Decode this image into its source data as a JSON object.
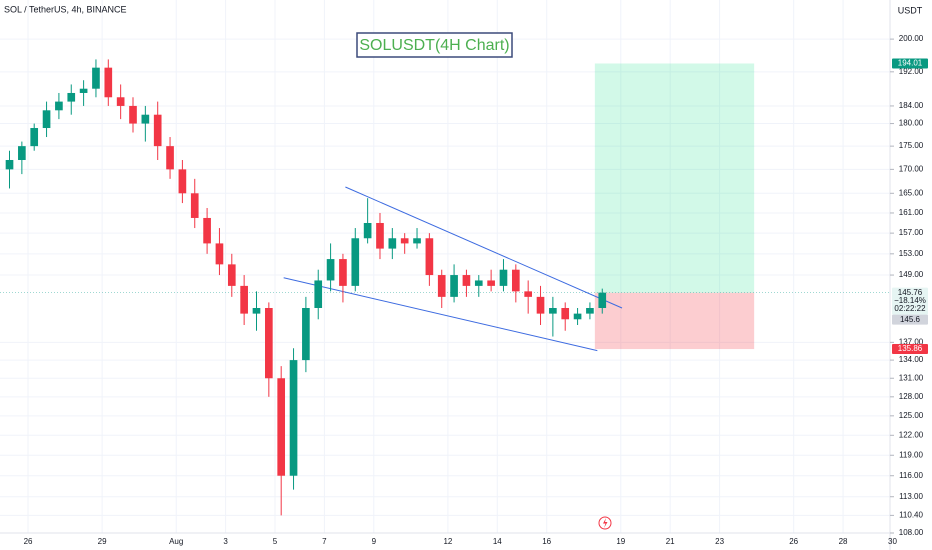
{
  "chart_data": {
    "type": "candlestick",
    "symbol_label": "SOL / TetherUS, 4h, BINANCE",
    "title": "SOLUSDT(4H Chart)",
    "currency": "USDT",
    "log_scale": true,
    "up_color": "#089981",
    "down_color": "#f23645",
    "trendline_color": "#3d6be0",
    "categories": [
      null,
      null,
      null,
      null,
      null,
      null,
      null,
      null,
      null,
      null,
      null,
      null,
      null,
      null,
      null,
      null,
      null,
      null,
      null,
      null,
      null,
      null,
      null,
      null,
      null,
      null,
      null,
      null,
      null,
      null,
      null,
      null,
      null,
      null,
      null,
      null,
      null,
      null,
      null,
      null,
      null,
      null,
      null,
      null,
      null,
      null,
      null,
      null,
      null
    ],
    "open": [
      170,
      172,
      175,
      179,
      183,
      185,
      187,
      188,
      193,
      186,
      184,
      180,
      182,
      175,
      170,
      165,
      160,
      155,
      151,
      147,
      142,
      143,
      131,
      116,
      134,
      143,
      148,
      152,
      147,
      156,
      159,
      154,
      156,
      155,
      156,
      149,
      145,
      149,
      147,
      148,
      147,
      150,
      146,
      145,
      142,
      143,
      141,
      142,
      143
    ],
    "high": [
      174,
      176,
      180,
      185,
      187,
      189,
      190,
      195,
      195,
      189,
      186,
      184,
      185,
      177,
      172,
      168,
      162,
      158,
      153,
      149,
      146,
      144,
      133,
      136,
      145,
      150,
      155,
      153,
      158,
      164,
      161,
      158,
      157,
      158,
      157,
      150,
      151,
      150,
      149,
      150,
      152,
      151,
      148,
      147,
      145,
      144,
      143,
      144,
      146.5
    ],
    "low": [
      166,
      169,
      174,
      177,
      181,
      182,
      184,
      186,
      184,
      181,
      178,
      176,
      172,
      168,
      163,
      158,
      153,
      149,
      145,
      140,
      139,
      128,
      110.4,
      114,
      132,
      141,
      146,
      144,
      146,
      155,
      152,
      152,
      153,
      154,
      147,
      143,
      144,
      145,
      145,
      146,
      146,
      144,
      142,
      140,
      138,
      139,
      140,
      141,
      142
    ],
    "close": [
      172,
      175,
      179,
      183,
      185,
      187,
      188,
      193,
      186,
      184,
      180,
      182,
      175,
      170,
      165,
      160,
      155,
      151,
      147,
      142,
      143,
      131,
      116,
      134,
      143,
      148,
      152,
      147,
      156,
      159,
      154,
      156,
      155,
      156,
      149,
      145,
      149,
      147,
      148,
      147,
      150,
      146,
      145,
      142,
      143,
      141,
      142,
      143,
      145.76
    ],
    "xlim": [
      -0.27,
      71.8
    ],
    "xticks": [
      {
        "value": 2,
        "label": "26"
      },
      {
        "value": 8,
        "label": "29"
      },
      {
        "value": 14,
        "label": "Aug"
      },
      {
        "value": 18,
        "label": "3"
      },
      {
        "value": 22,
        "label": "5"
      },
      {
        "value": 26,
        "label": "7"
      },
      {
        "value": 30,
        "label": "9"
      },
      {
        "value": 36,
        "label": "12"
      },
      {
        "value": 40,
        "label": "14"
      },
      {
        "value": 44,
        "label": "16"
      },
      {
        "value": 50,
        "label": "19"
      },
      {
        "value": 54,
        "label": "21"
      },
      {
        "value": 58,
        "label": "23"
      },
      {
        "value": 64,
        "label": "26"
      },
      {
        "value": 68,
        "label": "28"
      },
      {
        "value": 72,
        "label": "30"
      }
    ],
    "ylim": [
      108,
      210
    ],
    "yticks": [
      {
        "value": 200,
        "label": "200.00"
      },
      {
        "value": 192,
        "label": "192.00"
      },
      {
        "value": 184,
        "label": "184.00"
      },
      {
        "value": 180,
        "label": "180.00"
      },
      {
        "value": 175,
        "label": "175.00"
      },
      {
        "value": 170,
        "label": "170.00"
      },
      {
        "value": 165,
        "label": "165.00"
      },
      {
        "value": 161,
        "label": "161.00"
      },
      {
        "value": 157,
        "label": "157.00"
      },
      {
        "value": 153,
        "label": "153.00"
      },
      {
        "value": 149,
        "label": "149.00"
      },
      {
        "value": 137,
        "label": "137.00"
      },
      {
        "value": 134,
        "label": "134.00"
      },
      {
        "value": 131,
        "label": "131.00"
      },
      {
        "value": 128,
        "label": "128.00"
      },
      {
        "value": 125,
        "label": "125.00"
      },
      {
        "value": 122,
        "label": "122.00"
      },
      {
        "value": 119,
        "label": "119.00"
      },
      {
        "value": 116,
        "label": "116.00"
      },
      {
        "value": 113,
        "label": "113.00"
      },
      {
        "value": 110.4,
        "label": "110.40"
      },
      {
        "value": 108,
        "label": "108.00"
      }
    ],
    "trendlines": [
      {
        "from": [
          27.7,
          166.3
        ],
        "to": [
          50.1,
          143.0
        ]
      },
      {
        "from": [
          22.7,
          148.5
        ],
        "to": [
          48.1,
          135.6
        ]
      }
    ],
    "position": {
      "start": 47.9,
      "end": 60.8,
      "target": 194.01,
      "entry": 145.76,
      "stop": 135.86
    },
    "current_change": "−18.14%",
    "countdown": "02:22:22",
    "extra_price_label": 145.6
  }
}
